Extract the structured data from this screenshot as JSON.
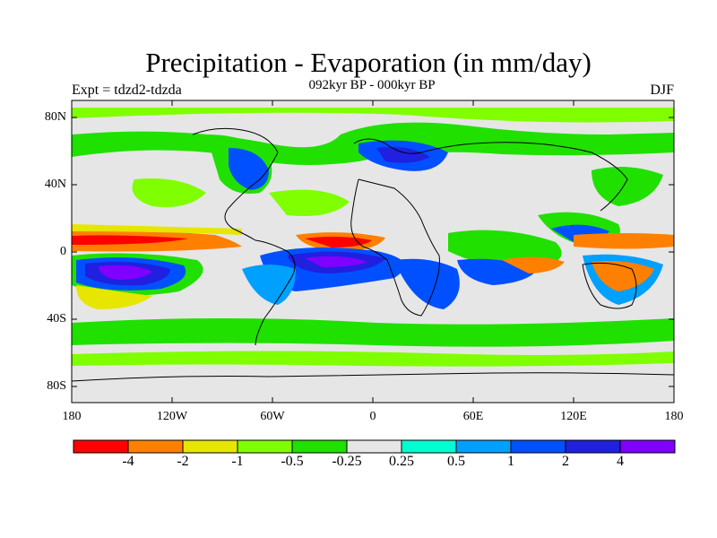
{
  "title": "Precipitation - Evaporation (in mm/day)",
  "subtitle": "092kyr BP - 000kyr BP",
  "left_label": "Expt = tdzd2-tdzda",
  "right_label": "DJF",
  "lat_ticks": [
    "80N",
    "40N",
    "0",
    "40S",
    "80S"
  ],
  "lon_ticks": [
    "180",
    "120W",
    "60W",
    "0",
    "60E",
    "120E",
    "180"
  ],
  "colorbar": {
    "colors": [
      "#ff0000",
      "#ff8000",
      "#e6e600",
      "#80ff00",
      "#20e000",
      "#e6e6e6",
      "#00ffd0",
      "#00a0ff",
      "#0050ff",
      "#2020e0",
      "#8000ff"
    ],
    "labels": [
      "-4",
      "-2",
      "-1",
      "-0.5",
      "-0.25",
      "0.25",
      "0.5",
      "1",
      "2",
      "4"
    ]
  }
}
